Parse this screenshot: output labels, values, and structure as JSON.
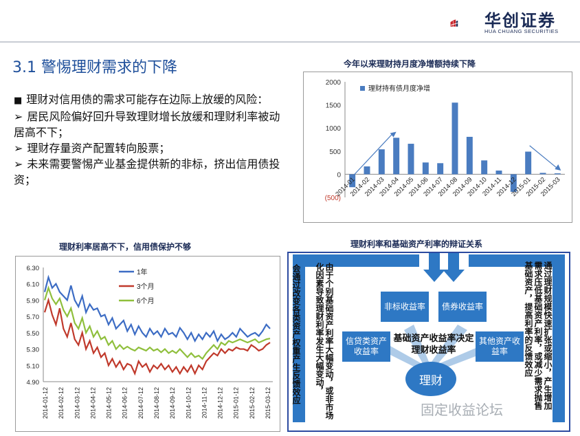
{
  "header": {
    "logo_cn": "华创证券",
    "logo_en": "HUA CHUANG SECURITIES",
    "colors": {
      "navy": "#1a2a55",
      "red": "#c8262c",
      "accent": "#1d4e9a"
    }
  },
  "slide": {
    "title": "3.1 警惕理财需求的下降",
    "bullets": [
      {
        "marker": "■",
        "text": "理财对信用债的需求可能存在边际上放缓的风险："
      },
      {
        "marker": "➢",
        "text": "居民风险偏好回升导致理财增长放缓和理财利率被动居高不下；"
      },
      {
        "marker": "➢",
        "text": "理财存量资产配置转向股票；"
      },
      {
        "marker": "➢",
        "text": "未来需要警惕产业基金提供新的非标，挤出信用债投资；"
      }
    ]
  },
  "chart_data": [
    {
      "type": "bar",
      "title": "今年以来理财持月度净增额持续下降",
      "legend": [
        "理财持有债月度净增"
      ],
      "legend_position": "top-left",
      "categories": [
        "2014-01",
        "2014-02",
        "2014-03",
        "2014-04",
        "2014-05",
        "2014-06",
        "2014-07",
        "2014-08",
        "2014-09",
        "2014-10",
        "2014-11",
        "2014-12",
        "2015-01",
        "2015-02",
        "2015-03"
      ],
      "values": [
        -280,
        170,
        540,
        790,
        660,
        255,
        240,
        1550,
        810,
        300,
        80,
        -380,
        490,
        30,
        20
      ],
      "ylim": [
        -500,
        2000
      ],
      "yticks": [
        "(500)",
        "0",
        "500",
        "1000",
        "1500",
        "2000"
      ],
      "grid": false,
      "bar_color": "#4a7cc0"
    },
    {
      "type": "line",
      "title": "理财利率居高不下，信用债保护不够",
      "legend_position": "top-center",
      "xticks": [
        "2014-01-12",
        "2014-02-12",
        "2014-03-12",
        "2014-04-12",
        "2014-05-12",
        "2014-06-12",
        "2014-07-12",
        "2014-08-12",
        "2014-09-12",
        "2014-10-12",
        "2014-11-12",
        "2014-12-12",
        "2015-01-12",
        "2015-02-12",
        "2015-03-12"
      ],
      "yticks": [
        "4.90",
        "5.10",
        "5.30",
        "5.50",
        "5.70",
        "5.90",
        "6.10",
        "6.30"
      ],
      "ylim": [
        4.9,
        6.3
      ],
      "series": [
        {
          "name": "1年",
          "color": "#3c6cc4",
          "values": [
            6.0,
            6.18,
            6.05,
            6.1,
            6.0,
            5.95,
            5.9,
            6.08,
            5.9,
            5.82,
            5.95,
            5.75,
            5.85,
            5.78,
            5.8,
            5.7,
            5.72,
            5.6,
            5.68,
            5.55,
            5.6,
            5.65,
            5.52,
            5.6,
            5.48,
            5.58,
            5.5,
            5.45,
            5.55,
            5.48,
            5.52,
            5.45,
            5.55,
            5.48,
            5.5,
            5.45,
            5.56,
            5.5,
            5.42,
            5.5,
            5.4,
            5.48,
            5.42,
            5.5,
            5.45,
            5.52,
            5.4,
            5.48,
            5.42,
            5.45,
            5.5,
            5.45,
            5.55,
            5.5,
            5.45,
            5.48,
            5.5,
            5.46,
            5.52,
            5.6,
            5.55
          ]
        },
        {
          "name": "3个月",
          "color": "#c0392b",
          "values": [
            5.75,
            5.9,
            5.72,
            5.6,
            5.8,
            5.55,
            5.45,
            5.62,
            5.42,
            5.35,
            5.5,
            5.3,
            5.4,
            5.25,
            5.32,
            5.2,
            5.25,
            5.1,
            5.18,
            5.08,
            5.15,
            5.05,
            5.12,
            5.1,
            5.0,
            5.15,
            5.08,
            5.12,
            5.02,
            5.1,
            5.06,
            5.12,
            5.05,
            5.1,
            5.02,
            5.08,
            5.0,
            5.08,
            5.02,
            5.1,
            5.0,
            5.1,
            5.05,
            5.15,
            5.2,
            5.25,
            5.22,
            5.3,
            5.25,
            5.3,
            5.28,
            5.32,
            5.3,
            5.3,
            5.28,
            5.35,
            5.32,
            5.28,
            5.3,
            5.35,
            5.38
          ]
        },
        {
          "name": "6个月",
          "color": "#8fbf3c",
          "values": [
            5.9,
            6.05,
            5.92,
            5.85,
            5.92,
            5.78,
            5.7,
            5.8,
            5.62,
            5.55,
            5.68,
            5.5,
            5.58,
            5.45,
            5.52,
            5.42,
            5.45,
            5.35,
            5.4,
            5.3,
            5.35,
            5.3,
            5.33,
            5.3,
            5.28,
            5.32,
            5.3,
            5.28,
            5.32,
            5.28,
            5.3,
            5.26,
            5.3,
            5.25,
            5.28,
            5.25,
            5.3,
            5.25,
            5.2,
            5.25,
            5.2,
            5.22,
            5.18,
            5.25,
            5.3,
            5.35,
            5.3,
            5.38,
            5.35,
            5.4,
            5.38,
            5.4,
            5.42,
            5.4,
            5.38,
            5.4,
            5.42,
            5.38,
            5.4,
            5.42,
            5.43
          ]
        }
      ]
    }
  ],
  "diagram": {
    "title": "理财利率和基础资产利率的辩证关系",
    "left_col1": "会通过改变各类资产权重产生反馈效应",
    "left_col2": "由于个别基础资产利率大幅变动，或非市场化因素导致理财利率发生大幅变动，",
    "right_col1": "通过理财规模快速扩张或缩小，产生增加需求压低基础资产利率，或减少需求抛售基础资产，提高利率的反馈效应",
    "box_nonstandard": "非标收益率",
    "box_bond": "债券收益率",
    "box_loan": "信贷类资产收益率",
    "box_other": "其他资产收益率",
    "center_text": "基础资产收益率决定理财收益率",
    "circle_label": "理财"
  },
  "watermark": "固定收益论坛"
}
